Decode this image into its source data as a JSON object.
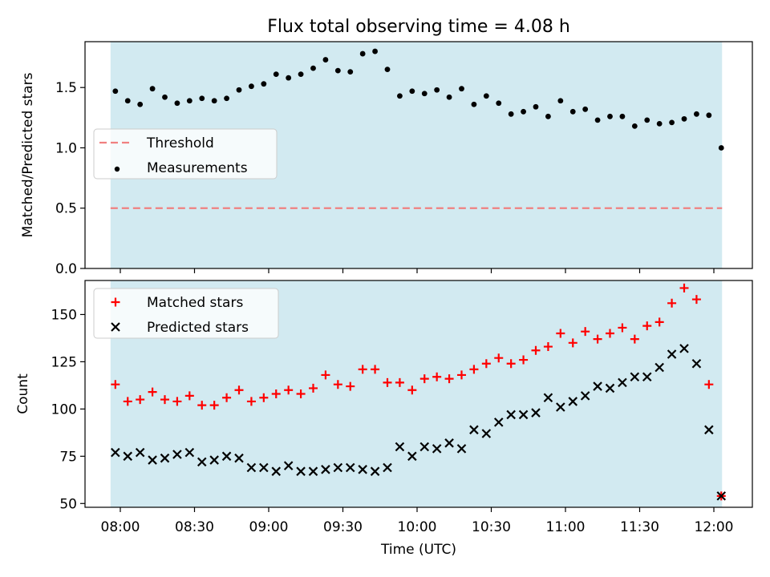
{
  "chart_data": {
    "title": "Flux total observing time = 4.08 h",
    "xlabel": "Time (UTC)",
    "x_ticks": [
      "08:00",
      "08:30",
      "09:00",
      "09:30",
      "10:00",
      "10:30",
      "11:00",
      "11:30",
      "12:00"
    ],
    "panels": [
      {
        "name": "ratio-panel",
        "type": "scatter",
        "ylabel": "Matched/Predicted stars",
        "ylim": [
          0,
          1.88
        ],
        "y_ticks": [
          "0.0",
          "0.5",
          "1.0",
          "1.5"
        ],
        "legend_placement": "center-left",
        "shaded_span_color": "#add8e6",
        "threshold": {
          "name": "Threshold",
          "value": 0.5,
          "color": "#f08080",
          "style": "dashed"
        },
        "series": [
          {
            "name": "Measurements",
            "color": "#000000",
            "marker": "dot",
            "x": [
              "07:58",
              "08:03",
              "08:08",
              "08:13",
              "08:18",
              "08:23",
              "08:28",
              "08:33",
              "08:38",
              "08:43",
              "08:48",
              "08:53",
              "08:58",
              "09:03",
              "09:08",
              "09:13",
              "09:18",
              "09:23",
              "09:28",
              "09:33",
              "09:38",
              "09:43",
              "09:48",
              "09:53",
              "09:58",
              "10:03",
              "10:08",
              "10:13",
              "10:18",
              "10:23",
              "10:28",
              "10:33",
              "10:38",
              "10:43",
              "10:48",
              "10:53",
              "10:58",
              "11:03",
              "11:08",
              "11:13",
              "11:18",
              "11:23",
              "11:28",
              "11:33",
              "11:38",
              "11:43",
              "11:48",
              "11:53",
              "11:58",
              "12:03"
            ],
            "y": [
              1.47,
              1.39,
              1.36,
              1.49,
              1.42,
              1.37,
              1.39,
              1.41,
              1.39,
              1.41,
              1.48,
              1.51,
              1.53,
              1.61,
              1.58,
              1.61,
              1.66,
              1.73,
              1.64,
              1.63,
              1.78,
              1.8,
              1.65,
              1.43,
              1.47,
              1.45,
              1.48,
              1.42,
              1.49,
              1.36,
              1.43,
              1.37,
              1.28,
              1.3,
              1.34,
              1.26,
              1.39,
              1.3,
              1.32,
              1.23,
              1.26,
              1.26,
              1.18,
              1.23,
              1.2,
              1.21,
              1.24,
              1.28,
              1.27,
              1.0
            ]
          }
        ]
      },
      {
        "name": "count-panel",
        "type": "scatter",
        "ylabel": "Count",
        "ylim": [
          48,
          168
        ],
        "y_ticks": [
          "50",
          "75",
          "100",
          "125",
          "150"
        ],
        "legend_placement": "upper-left",
        "shaded_span_color": "#add8e6",
        "series": [
          {
            "name": "Matched stars",
            "color": "#ff0000",
            "marker": "plus",
            "x": [
              "07:58",
              "08:03",
              "08:08",
              "08:13",
              "08:18",
              "08:23",
              "08:28",
              "08:33",
              "08:38",
              "08:43",
              "08:48",
              "08:53",
              "08:58",
              "09:03",
              "09:08",
              "09:13",
              "09:18",
              "09:23",
              "09:28",
              "09:33",
              "09:38",
              "09:43",
              "09:48",
              "09:53",
              "09:58",
              "10:03",
              "10:08",
              "10:13",
              "10:18",
              "10:23",
              "10:28",
              "10:33",
              "10:38",
              "10:43",
              "10:48",
              "10:53",
              "10:58",
              "11:03",
              "11:08",
              "11:13",
              "11:18",
              "11:23",
              "11:28",
              "11:33",
              "11:38",
              "11:43",
              "11:48",
              "11:53",
              "11:58",
              "12:03"
            ],
            "y": [
              113,
              104,
              105,
              109,
              105,
              104,
              107,
              102,
              102,
              106,
              110,
              104,
              106,
              108,
              110,
              108,
              111,
              118,
              113,
              112,
              121,
              121,
              114,
              114,
              110,
              116,
              117,
              116,
              118,
              121,
              124,
              127,
              124,
              126,
              131,
              133,
              140,
              135,
              141,
              137,
              140,
              143,
              137,
              144,
              146,
              156,
              164,
              158,
              113,
              54
            ]
          },
          {
            "name": "Predicted stars",
            "color": "#000000",
            "marker": "cross",
            "x": [
              "07:58",
              "08:03",
              "08:08",
              "08:13",
              "08:18",
              "08:23",
              "08:28",
              "08:33",
              "08:38",
              "08:43",
              "08:48",
              "08:53",
              "08:58",
              "09:03",
              "09:08",
              "09:13",
              "09:18",
              "09:23",
              "09:28",
              "09:33",
              "09:38",
              "09:43",
              "09:48",
              "09:53",
              "09:58",
              "10:03",
              "10:08",
              "10:13",
              "10:18",
              "10:23",
              "10:28",
              "10:33",
              "10:38",
              "10:43",
              "10:48",
              "10:53",
              "10:58",
              "11:03",
              "11:08",
              "11:13",
              "11:18",
              "11:23",
              "11:28",
              "11:33",
              "11:38",
              "11:43",
              "11:48",
              "11:53",
              "11:58",
              "12:03"
            ],
            "y": [
              77,
              75,
              77,
              73,
              74,
              76,
              77,
              72,
              73,
              75,
              74,
              69,
              69,
              67,
              70,
              67,
              67,
              68,
              69,
              69,
              68,
              67,
              69,
              80,
              75,
              80,
              79,
              82,
              79,
              89,
              87,
              93,
              97,
              97,
              98,
              106,
              101,
              104,
              107,
              112,
              111,
              114,
              117,
              117,
              122,
              129,
              132,
              124,
              89,
              54
            ]
          }
        ]
      }
    ]
  }
}
